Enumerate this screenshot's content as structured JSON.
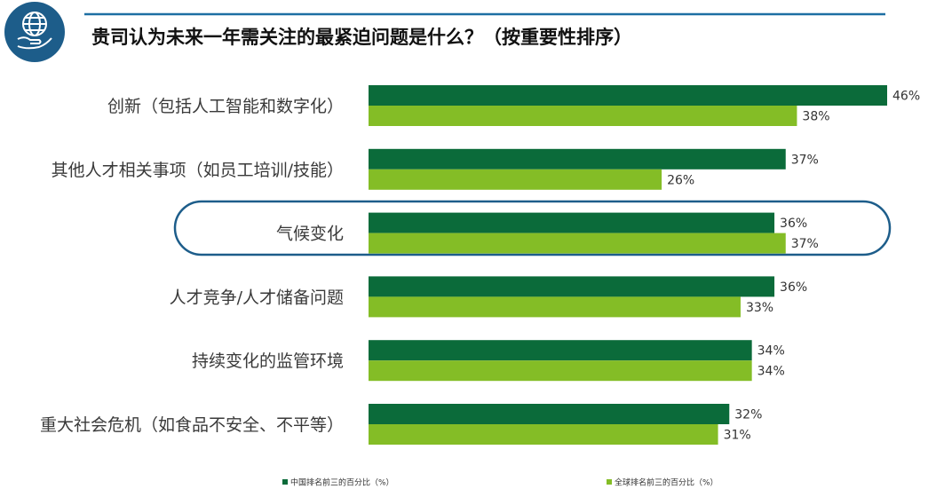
{
  "colors": {
    "series1": "#0b6b3a",
    "series2": "#84bd26",
    "accent": "#1d5d8a",
    "rule": "#1d6fa3"
  },
  "logo": {
    "icon": "globe-hand-icon"
  },
  "chart_data": {
    "type": "bar",
    "orientation": "horizontal",
    "title": "贵司认为未来一年需关注的最紧迫问题是什么？（按重要性排序）",
    "categories": [
      "创新（包括人工智能和数字化）",
      "其他人才相关事项（如员工培训/技能）",
      "气候变化",
      "人才竞争/人才储备问题",
      "持续变化的监管环境",
      "重大社会危机（如食品不安全、不平等）"
    ],
    "series": [
      {
        "name": "中国排名前三的百分比（%）",
        "values": [
          46,
          37,
          36,
          36,
          34,
          32
        ]
      },
      {
        "name": "全球排名前三的百分比（%）",
        "values": [
          38,
          26,
          37,
          33,
          34,
          31
        ]
      }
    ],
    "value_labels": [
      [
        "46%",
        "37%",
        "36%",
        "36%",
        "34%",
        "32%"
      ],
      [
        "38%",
        "26%",
        "37%",
        "33%",
        "34%",
        "31%"
      ]
    ],
    "xlim": [
      0,
      46
    ],
    "highlighted_category": "气候变化",
    "grid": false,
    "legend_position": "bottom"
  }
}
